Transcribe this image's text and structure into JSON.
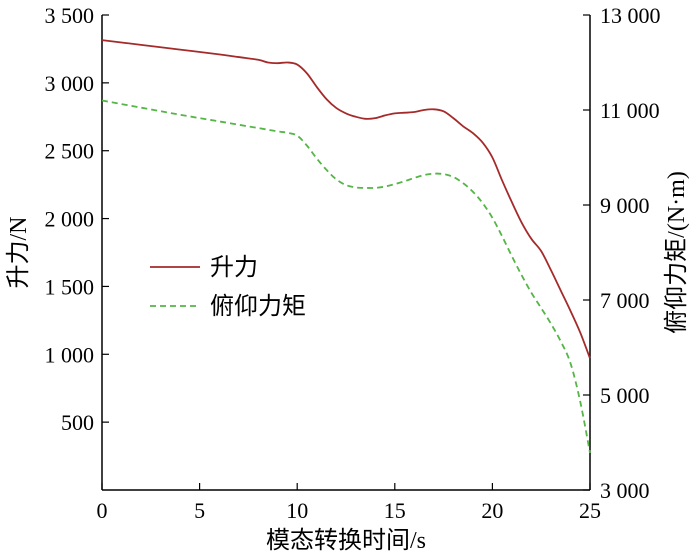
{
  "chart_data": {
    "type": "line",
    "xlabel": "模态转换时间/s",
    "ylabel_left": "升力/N",
    "ylabel_right": "俯仰力矩/(N·m)",
    "xlim": [
      0,
      25
    ],
    "ylim_left": [
      0,
      3500
    ],
    "ylim_right": [
      3000,
      13000
    ],
    "x_ticks": [
      {
        "value": 0,
        "label": "0"
      },
      {
        "value": 5,
        "label": "5"
      },
      {
        "value": 10,
        "label": "10"
      },
      {
        "value": 15,
        "label": "15"
      },
      {
        "value": 20,
        "label": "20"
      },
      {
        "value": 25,
        "label": "25"
      }
    ],
    "y_left_ticks": [
      {
        "value": 500,
        "label": "500"
      },
      {
        "value": 1000,
        "label": "1 000"
      },
      {
        "value": 1500,
        "label": "1 500"
      },
      {
        "value": 2000,
        "label": "2 000"
      },
      {
        "value": 2500,
        "label": "2 500"
      },
      {
        "value": 3000,
        "label": "3 000"
      },
      {
        "value": 3500,
        "label": "3 500"
      }
    ],
    "y_right_ticks": [
      {
        "value": 3000,
        "label": "3 000"
      },
      {
        "value": 5000,
        "label": "5 000"
      },
      {
        "value": 7000,
        "label": "7 000"
      },
      {
        "value": 9000,
        "label": "9 000"
      },
      {
        "value": 11000,
        "label": "11 000"
      },
      {
        "value": 13000,
        "label": "13 000"
      }
    ],
    "grid": false,
    "legend_position": "center-left",
    "series": [
      {
        "name": "升力",
        "axis": "left",
        "color": "#a52a2a",
        "style": "solid",
        "x": [
          0,
          2,
          4,
          6,
          7,
          8,
          8.5,
          9,
          9.5,
          10,
          10.5,
          11,
          11.5,
          12,
          12.5,
          13,
          13.5,
          14,
          14.5,
          15,
          15.5,
          16,
          16.5,
          17,
          17.5,
          18,
          18.5,
          19,
          19.5,
          20,
          20.5,
          21,
          21.5,
          22,
          22.5,
          23,
          23.5,
          24,
          24.5,
          25
        ],
        "y": [
          3315,
          3280,
          3245,
          3210,
          3190,
          3170,
          3150,
          3145,
          3150,
          3135,
          3070,
          2970,
          2880,
          2815,
          2775,
          2750,
          2735,
          2740,
          2760,
          2775,
          2780,
          2785,
          2800,
          2805,
          2790,
          2740,
          2680,
          2630,
          2560,
          2450,
          2280,
          2120,
          1970,
          1850,
          1760,
          1620,
          1470,
          1320,
          1160,
          970
        ]
      },
      {
        "name": "俯仰力矩",
        "axis": "right",
        "color": "#55b547",
        "style": "dashed",
        "x": [
          0,
          2,
          4,
          6,
          8,
          9,
          9.5,
          10,
          10.5,
          11,
          11.5,
          12,
          12.5,
          13,
          13.5,
          14,
          14.5,
          15,
          15.5,
          16,
          16.5,
          17,
          17.5,
          18,
          18.5,
          19,
          19.5,
          20,
          20.5,
          21,
          21.5,
          22,
          22.5,
          23,
          23.5,
          24,
          24.5,
          25
        ],
        "y": [
          11200,
          11050,
          10900,
          10760,
          10620,
          10550,
          10520,
          10460,
          10250,
          9980,
          9740,
          9540,
          9420,
          9370,
          9360,
          9360,
          9390,
          9440,
          9500,
          9570,
          9630,
          9660,
          9650,
          9590,
          9460,
          9280,
          9040,
          8730,
          8340,
          7920,
          7520,
          7150,
          6830,
          6500,
          6130,
          5670,
          4860,
          3780
        ]
      }
    ]
  }
}
